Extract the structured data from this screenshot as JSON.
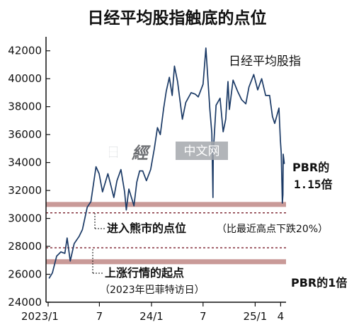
{
  "chart_data": {
    "type": "line",
    "title": "日经平均股指触底的点位",
    "series_name": "日经平均股指",
    "ylim": [
      24000,
      43000
    ],
    "y_ticks": [
      "42000",
      "40000",
      "38000",
      "36000",
      "34000",
      "32000",
      "30000",
      "28000",
      "26000",
      "24000"
    ],
    "x_ticks": [
      "2023/1",
      "7",
      "24/1",
      "7",
      "25/1",
      "4"
    ],
    "grid": false,
    "series": [
      {
        "name": "日经平均股指",
        "points": [
          [
            "2023-01-04",
            25700
          ],
          [
            "2023-01-16",
            26100
          ],
          [
            "2023-01-31",
            27300
          ],
          [
            "2023-02-15",
            27600
          ],
          [
            "2023-03-01",
            27500
          ],
          [
            "2023-03-09",
            28600
          ],
          [
            "2023-03-20",
            26950
          ],
          [
            "2023-04-03",
            28200
          ],
          [
            "2023-04-20",
            28700
          ],
          [
            "2023-05-02",
            29200
          ],
          [
            "2023-05-19",
            30800
          ],
          [
            "2023-06-01",
            31200
          ],
          [
            "2023-06-19",
            33700
          ],
          [
            "2023-06-30",
            33200
          ],
          [
            "2023-07-12",
            31900
          ],
          [
            "2023-07-31",
            33200
          ],
          [
            "2023-08-10",
            32400
          ],
          [
            "2023-08-21",
            31500
          ],
          [
            "2023-09-01",
            32700
          ],
          [
            "2023-09-15",
            33500
          ],
          [
            "2023-09-28",
            31900
          ],
          [
            "2023-10-04",
            30600
          ],
          [
            "2023-10-13",
            32100
          ],
          [
            "2023-10-31",
            30900
          ],
          [
            "2023-11-10",
            32600
          ],
          [
            "2023-11-20",
            33400
          ],
          [
            "2023-12-01",
            33400
          ],
          [
            "2023-12-14",
            32700
          ],
          [
            "2023-12-29",
            33500
          ],
          [
            "2024-01-11",
            35000
          ],
          [
            "2024-01-22",
            36500
          ],
          [
            "2024-02-01",
            36000
          ],
          [
            "2024-02-13",
            37900
          ],
          [
            "2024-02-22",
            39100
          ],
          [
            "2024-03-04",
            40100
          ],
          [
            "2024-03-14",
            38800
          ],
          [
            "2024-03-22",
            40900
          ],
          [
            "2024-04-02",
            39800
          ],
          [
            "2024-04-19",
            37100
          ],
          [
            "2024-05-01",
            38300
          ],
          [
            "2024-05-20",
            39000
          ],
          [
            "2024-06-03",
            38900
          ],
          [
            "2024-06-14",
            38700
          ],
          [
            "2024-07-01",
            39600
          ],
          [
            "2024-07-11",
            42200
          ],
          [
            "2024-07-25",
            37800
          ],
          [
            "2024-08-01",
            36100
          ],
          [
            "2024-08-05",
            31500
          ],
          [
            "2024-08-06",
            34700
          ],
          [
            "2024-08-16",
            38100
          ],
          [
            "2024-08-30",
            38600
          ],
          [
            "2024-09-10",
            36200
          ],
          [
            "2024-09-19",
            37100
          ],
          [
            "2024-09-27",
            39800
          ],
          [
            "2024-10-02",
            37800
          ],
          [
            "2024-10-15",
            39900
          ],
          [
            "2024-10-31",
            39100
          ],
          [
            "2024-11-14",
            38500
          ],
          [
            "2024-11-29",
            38200
          ],
          [
            "2024-12-10",
            39400
          ],
          [
            "2024-12-27",
            40300
          ],
          [
            "2025-01-10",
            39200
          ],
          [
            "2025-01-24",
            40000
          ],
          [
            "2025-02-07",
            38800
          ],
          [
            "2025-02-21",
            38800
          ],
          [
            "2025-03-03",
            37300
          ],
          [
            "2025-03-11",
            36800
          ],
          [
            "2025-03-26",
            37900
          ],
          [
            "2025-03-31",
            35600
          ],
          [
            "2025-04-03",
            34700
          ],
          [
            "2025-04-07",
            31100
          ],
          [
            "2025-04-09",
            31700
          ],
          [
            "2025-04-10",
            34600
          ],
          [
            "2025-04-14",
            33900
          ]
        ]
      }
    ],
    "reference_lines": [
      {
        "name": "PBR 1.15x band",
        "y": 31000,
        "style": "band"
      },
      {
        "name": "bear market threshold",
        "y": 30400,
        "style": "dashed"
      },
      {
        "name": "2023 start reference",
        "y": 27900,
        "style": "dashed"
      },
      {
        "name": "PBR 1.0x band",
        "y": 26900,
        "style": "band"
      }
    ],
    "annotations": {
      "pbr_115_line1": "PBR的",
      "pbr_115_line2": "1.15倍",
      "bear_market": "进入熊市的点位",
      "bear_market_note": "（比最近高点下跌20%）",
      "rally_start": "上涨行情的起点",
      "rally_start_note": "（2023年巴菲特访日）",
      "pbr_1": "PBR的1倍"
    },
    "colors": {
      "line": "#1b3a66",
      "band": "#c99a98",
      "dashed": "#7a1f2b",
      "axis": "#111111"
    }
  },
  "watermark": {
    "glyph1": "日",
    "glyph2": "經",
    "text": "中文网"
  }
}
